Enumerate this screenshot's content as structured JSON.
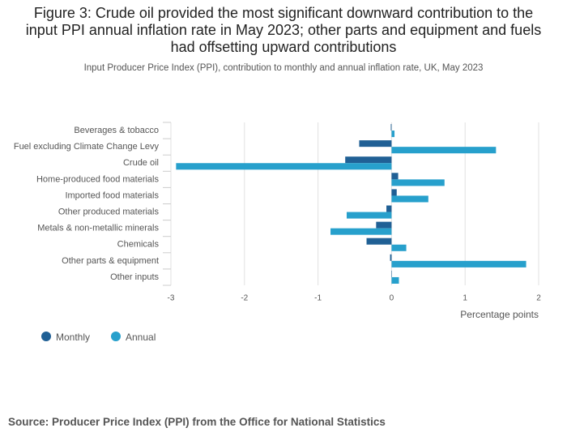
{
  "chart_data": {
    "type": "hbar",
    "title": "Figure 3: Crude oil provided the most significant downward contribution to the input PPI annual inflation rate in May 2023; other parts and equipment and fuels had offsetting upward contributions",
    "subtitle": "Input Producer Price Index (PPI), contribution to monthly and annual inflation rate, UK, May 2023",
    "x_label": "Percentage points",
    "source": "Source: Producer Price Index (PPI) from the Office for National Statistics",
    "categories": [
      "Beverages & tobacco",
      "Fuel excluding Climate Change Levy",
      "Crude oil",
      "Home-produced food materials",
      "Imported food materials",
      "Other produced materials",
      "Metals & non-metallic minerals",
      "Chemicals",
      "Other parts & equipment",
      "Other inputs"
    ],
    "series": [
      {
        "name": "Monthly",
        "color": "#206095",
        "values": [
          -0.01,
          -0.44,
          -0.63,
          0.09,
          0.07,
          -0.07,
          -0.21,
          -0.34,
          -0.02,
          0
        ]
      },
      {
        "name": "Annual",
        "color": "#27a0cc",
        "values": [
          0.04,
          1.42,
          -2.93,
          0.72,
          0.5,
          -0.61,
          -0.83,
          0.2,
          1.83,
          0.1
        ]
      }
    ],
    "xlim": [
      -3,
      2
    ],
    "xticks": [
      -3,
      -2,
      -1,
      0,
      1,
      2
    ],
    "grid": true
  }
}
